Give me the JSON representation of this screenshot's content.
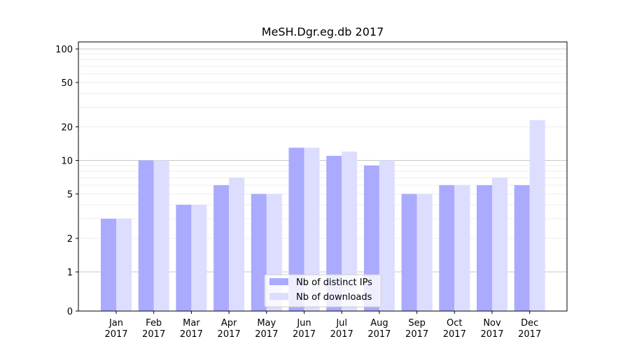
{
  "chart_data": {
    "type": "bar",
    "title": "MeSH.Dgr.eg.db 2017",
    "xlabel": "",
    "ylabel": "",
    "y_scale": "symlog",
    "ylim": [
      0,
      110
    ],
    "y_ticks": [
      0,
      1,
      2,
      5,
      10,
      20,
      50,
      100
    ],
    "y_tick_labels": [
      "0",
      "1",
      "2",
      "5",
      "10",
      "20",
      "50",
      "100"
    ],
    "categories": [
      "Jan\n2017",
      "Feb\n2017",
      "Mar\n2017",
      "Apr\n2017",
      "May\n2017",
      "Jun\n2017",
      "Jul\n2017",
      "Aug\n2017",
      "Sep\n2017",
      "Oct\n2017",
      "Nov\n2017",
      "Dec\n2017"
    ],
    "series": [
      {
        "name": "Nb of distinct IPs",
        "color": "#aaaaff",
        "values": [
          3,
          10,
          4,
          6,
          5,
          13,
          11,
          9,
          5,
          6,
          6,
          6
        ]
      },
      {
        "name": "Nb of downloads",
        "color": "#ddddff",
        "values": [
          3,
          10,
          4,
          7,
          5,
          13,
          12,
          10,
          5,
          6,
          7,
          23
        ]
      }
    ],
    "legend_position": "lower center",
    "grid": true
  }
}
